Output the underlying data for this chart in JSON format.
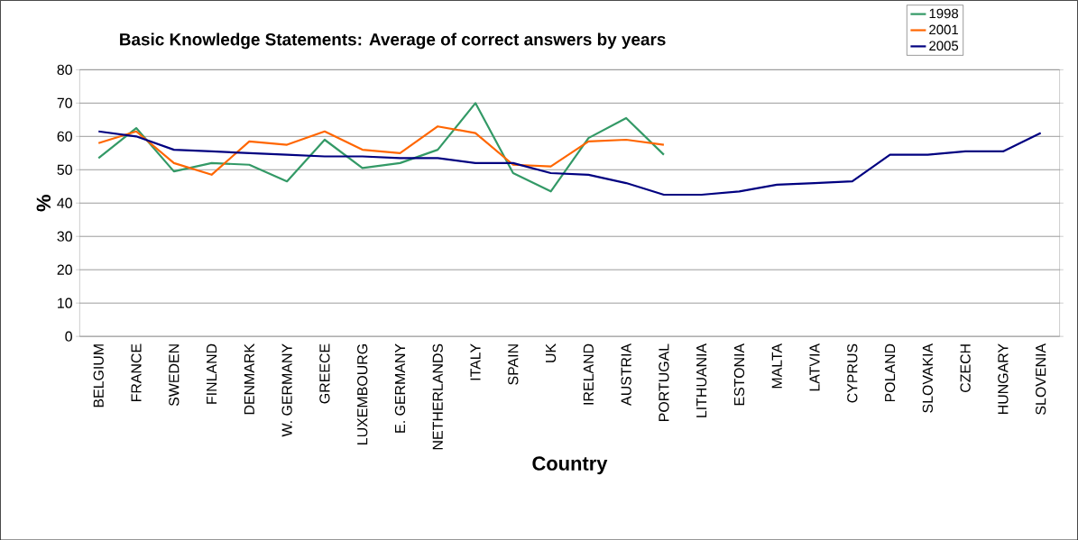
{
  "chart_data": {
    "type": "line",
    "title": "Basic Knowledge Statements: Average of correct answers by years",
    "xlabel": "Country",
    "ylabel": "%",
    "categories": [
      "BELGIUM",
      "FRANCE",
      "SWEDEN",
      "FINLAND",
      "DENMARK",
      "W. GERMANY",
      "GREECE",
      "LUXEMBOURG",
      "E. GERMANY",
      "NETHERLANDS",
      "ITALY",
      "SPAIN",
      "UK",
      "IRELAND",
      "AUSTRIA",
      "PORTUGAL",
      "LITHUANIA",
      "ESTONIA",
      "MALTA",
      "LATVIA",
      "CYPRUS",
      "POLAND",
      "SLOVAKIA",
      "CZECH",
      "HUNGARY",
      "SLOVENIA"
    ],
    "series": [
      {
        "name": "1998",
        "color": "#339966",
        "values": [
          53.5,
          62.5,
          49.5,
          52,
          51.5,
          46.5,
          59,
          50.5,
          52,
          56,
          70,
          49,
          43.5,
          59.5,
          65.5,
          54.5,
          null,
          null,
          null,
          null,
          null,
          null,
          null,
          null,
          null,
          null
        ]
      },
      {
        "name": "2001",
        "color": "#ff6600",
        "values": [
          58,
          61.5,
          52,
          48.5,
          58.5,
          57.5,
          61.5,
          56,
          55,
          63,
          61,
          51.5,
          51,
          58.5,
          59,
          57.5,
          null,
          null,
          null,
          null,
          null,
          null,
          null,
          null,
          null,
          null
        ]
      },
      {
        "name": "2005",
        "color": "#000080",
        "values": [
          61.5,
          60,
          56,
          55.5,
          55,
          54.5,
          54,
          54,
          53.5,
          53.5,
          52,
          52,
          49,
          48.5,
          46,
          42.5,
          42.5,
          43.5,
          45.5,
          46,
          46.5,
          54.5,
          54.5,
          55.5,
          55.5,
          61
        ]
      }
    ],
    "ylim": [
      0,
      80
    ],
    "yticks": [
      0,
      10,
      20,
      30,
      40,
      50,
      60,
      70,
      80
    ],
    "grid": "y",
    "legend": "top right"
  }
}
